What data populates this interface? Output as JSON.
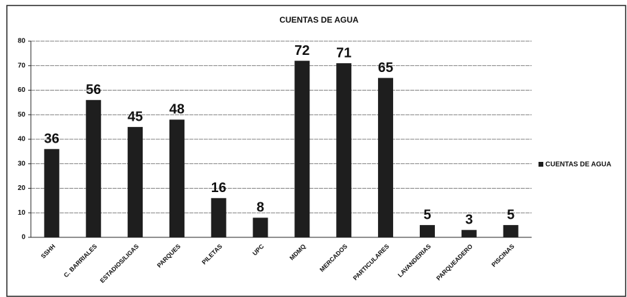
{
  "chart_data": {
    "type": "bar",
    "title": "CUENTAS DE AGUA",
    "categories": [
      "SSHH",
      "C. BARRIALES",
      "ESTADIOS/LIGAS",
      "PARQUES",
      "PILETAS",
      "UPC",
      "MDMQ",
      "MERCADOS",
      "PARTICULARES",
      "LAVANDERIAS",
      "PARQUEADERO",
      "PISCINAS"
    ],
    "series": [
      {
        "name": "CUENTAS DE AGUA",
        "color": "#1e1e1e",
        "values": [
          36,
          56,
          45,
          48,
          16,
          8,
          72,
          71,
          65,
          5,
          3,
          5
        ]
      }
    ],
    "ylim": [
      0,
      80
    ],
    "yticks": [
      0,
      10,
      20,
      30,
      40,
      50,
      60,
      70,
      80
    ],
    "grid": true,
    "legend": "right"
  }
}
